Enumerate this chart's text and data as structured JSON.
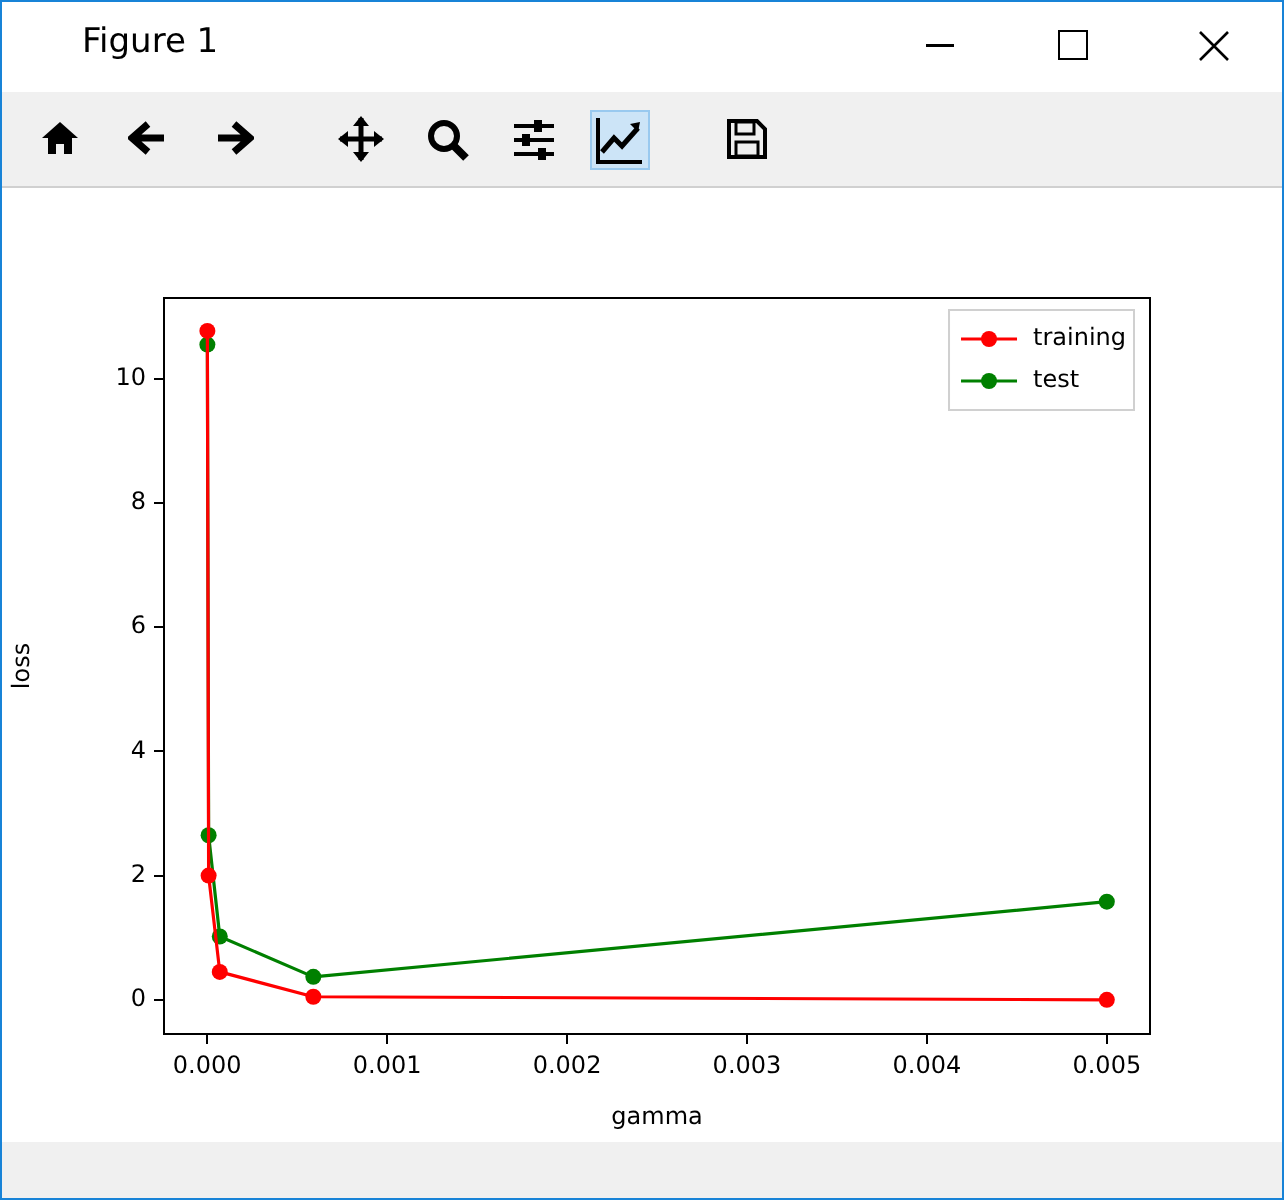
{
  "chart_data": {
    "type": "line",
    "xlabel": "gamma",
    "ylabel": "loss",
    "annotations": [
      "Figure 1"
    ],
    "x": [
      1e-06,
      8e-06,
      7e-05,
      0.00059,
      0.005
    ],
    "series": [
      {
        "name": "training",
        "color": "#ff0000",
        "values": [
          10.77,
          2.0,
          0.45,
          0.05,
          0.0
        ]
      },
      {
        "name": "test",
        "color": "#008000",
        "values": [
          10.55,
          2.65,
          1.02,
          0.37,
          1.58
        ]
      }
    ],
    "xlim": [
      -0.00024,
      0.00524
    ],
    "ylim": [
      -0.55,
      11.3
    ],
    "xticks": [
      {
        "value": 0,
        "label": "0.000"
      },
      {
        "value": 0.001,
        "label": "0.001"
      },
      {
        "value": 0.002,
        "label": "0.002"
      },
      {
        "value": 0.003,
        "label": "0.003"
      },
      {
        "value": 0.004,
        "label": "0.004"
      },
      {
        "value": 0.005,
        "label": "0.005"
      }
    ],
    "yticks": [
      0,
      2,
      4,
      6,
      8,
      10
    ],
    "marker": "circle",
    "line_style": "solid",
    "legend": "top right",
    "grid": false
  }
}
